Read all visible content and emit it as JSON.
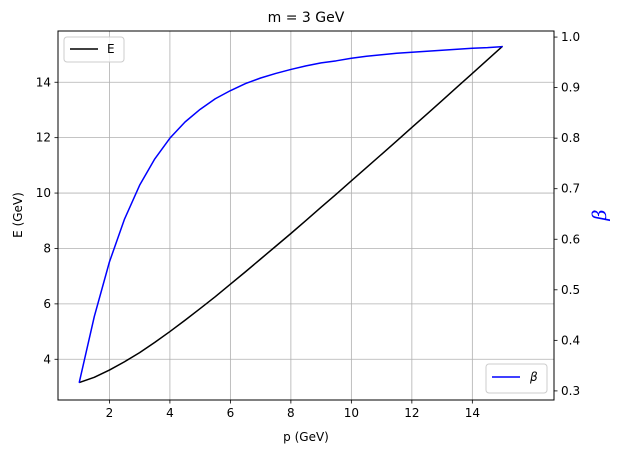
{
  "chart_data": {
    "type": "line",
    "title": "m = 3 GeV",
    "xlabel": "p (GeV)",
    "ylabel_left": "E (GeV)",
    "ylabel_right": "β",
    "xlim": [
      0.3,
      16.7
    ],
    "ylim_left": [
      2.53,
      15.85
    ],
    "ylim_right": [
      0.282,
      1.012
    ],
    "x_ticks": [
      2,
      4,
      6,
      8,
      10,
      12,
      14
    ],
    "y_ticks_left": [
      4,
      6,
      8,
      10,
      12,
      14
    ],
    "y_ticks_right": [
      0.3,
      0.4,
      0.5,
      0.6,
      0.7,
      0.8,
      0.9,
      1.0
    ],
    "y_tick_labels_right": [
      "0.3",
      "0.4",
      "0.5",
      "0.6",
      "0.7",
      "0.8",
      "0.9",
      "1.0"
    ],
    "grid": true,
    "series": [
      {
        "name": "E",
        "axis": "left",
        "color": "#000000",
        "x": [
          1,
          1.5,
          2,
          2.5,
          3,
          3.5,
          4,
          4.5,
          5,
          5.5,
          6,
          6.5,
          7,
          7.5,
          8,
          8.5,
          9,
          9.5,
          10,
          10.5,
          11,
          11.5,
          12,
          12.5,
          13,
          13.5,
          14,
          14.5,
          15
        ],
        "y": [
          3.16,
          3.35,
          3.61,
          3.91,
          4.24,
          4.61,
          5.0,
          5.41,
          5.83,
          6.26,
          6.71,
          7.16,
          7.62,
          8.08,
          8.54,
          9.01,
          9.49,
          9.96,
          10.44,
          10.92,
          11.4,
          11.88,
          12.37,
          12.85,
          13.34,
          13.83,
          14.32,
          14.81,
          15.3
        ]
      },
      {
        "name": "β",
        "axis": "right",
        "color": "#0000ff",
        "x": [
          1,
          1.5,
          2,
          2.5,
          3,
          3.5,
          4,
          4.5,
          5,
          5.5,
          6,
          6.5,
          7,
          7.5,
          8,
          8.5,
          9,
          9.5,
          10,
          10.5,
          11,
          11.5,
          12,
          12.5,
          13,
          13.5,
          14,
          14.5,
          15
        ],
        "y": [
          0.316,
          0.447,
          0.555,
          0.64,
          0.707,
          0.759,
          0.8,
          0.832,
          0.857,
          0.878,
          0.894,
          0.908,
          0.919,
          0.928,
          0.936,
          0.943,
          0.949,
          0.953,
          0.958,
          0.962,
          0.965,
          0.968,
          0.97,
          0.972,
          0.974,
          0.976,
          0.978,
          0.979,
          0.981
        ]
      }
    ],
    "legends": [
      {
        "placement": "upper-left",
        "entries": [
          "E"
        ]
      },
      {
        "placement": "lower-right",
        "entries": [
          "β"
        ]
      }
    ]
  }
}
